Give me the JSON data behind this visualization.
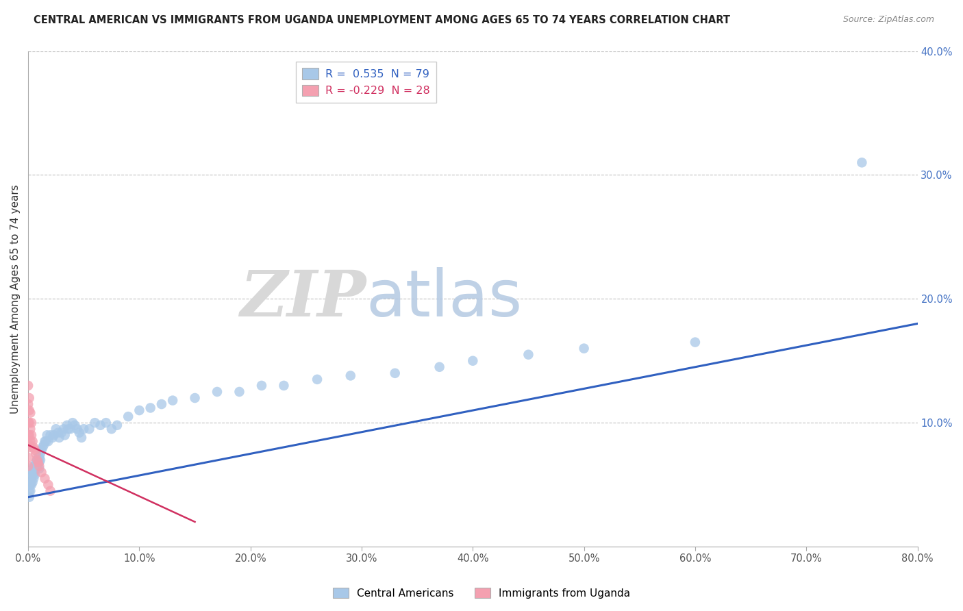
{
  "title": "CENTRAL AMERICAN VS IMMIGRANTS FROM UGANDA UNEMPLOYMENT AMONG AGES 65 TO 74 YEARS CORRELATION CHART",
  "source": "Source: ZipAtlas.com",
  "ylabel": "Unemployment Among Ages 65 to 74 years",
  "xlim": [
    0.0,
    0.8
  ],
  "ylim": [
    0.0,
    0.4
  ],
  "xticks": [
    0.0,
    0.1,
    0.2,
    0.3,
    0.4,
    0.5,
    0.6,
    0.7,
    0.8
  ],
  "yticks": [
    0.0,
    0.1,
    0.2,
    0.3,
    0.4
  ],
  "ytick_labels_right": [
    "",
    "10.0%",
    "20.0%",
    "30.0%",
    "40.0%"
  ],
  "xtick_labels": [
    "0.0%",
    "10.0%",
    "20.0%",
    "30.0%",
    "40.0%",
    "50.0%",
    "60.0%",
    "70.0%",
    "80.0%"
  ],
  "blue_R": 0.535,
  "blue_N": 79,
  "pink_R": -0.229,
  "pink_N": 28,
  "blue_color": "#a8c8e8",
  "pink_color": "#f4a0b0",
  "blue_line_color": "#3060c0",
  "pink_line_color": "#d03060",
  "watermark_zip": "ZIP",
  "watermark_atlas": "atlas",
  "legend_blue_label": "R =  0.535  N = 79",
  "legend_pink_label": "R = -0.229  N = 28",
  "bottom_legend_blue": "Central Americans",
  "bottom_legend_pink": "Immigrants from Uganda",
  "blue_scatter_x": [
    0.001,
    0.001,
    0.001,
    0.002,
    0.002,
    0.002,
    0.003,
    0.003,
    0.003,
    0.004,
    0.004,
    0.004,
    0.005,
    0.005,
    0.005,
    0.006,
    0.006,
    0.006,
    0.007,
    0.007,
    0.008,
    0.008,
    0.009,
    0.009,
    0.01,
    0.01,
    0.01,
    0.011,
    0.011,
    0.012,
    0.013,
    0.014,
    0.015,
    0.016,
    0.017,
    0.018,
    0.02,
    0.022,
    0.023,
    0.025,
    0.027,
    0.028,
    0.03,
    0.032,
    0.033,
    0.035,
    0.036,
    0.038,
    0.04,
    0.042,
    0.044,
    0.046,
    0.048,
    0.05,
    0.055,
    0.06,
    0.065,
    0.07,
    0.075,
    0.08,
    0.09,
    0.1,
    0.11,
    0.12,
    0.13,
    0.15,
    0.17,
    0.19,
    0.21,
    0.23,
    0.26,
    0.29,
    0.33,
    0.37,
    0.4,
    0.45,
    0.5,
    0.6,
    0.75
  ],
  "blue_scatter_y": [
    0.05,
    0.045,
    0.04,
    0.055,
    0.05,
    0.045,
    0.06,
    0.055,
    0.05,
    0.062,
    0.058,
    0.052,
    0.065,
    0.06,
    0.055,
    0.065,
    0.062,
    0.058,
    0.068,
    0.063,
    0.07,
    0.065,
    0.072,
    0.067,
    0.072,
    0.068,
    0.063,
    0.075,
    0.07,
    0.078,
    0.08,
    0.082,
    0.085,
    0.085,
    0.09,
    0.085,
    0.09,
    0.088,
    0.09,
    0.095,
    0.092,
    0.088,
    0.092,
    0.095,
    0.09,
    0.098,
    0.095,
    0.095,
    0.1,
    0.098,
    0.095,
    0.092,
    0.088,
    0.095,
    0.095,
    0.1,
    0.098,
    0.1,
    0.095,
    0.098,
    0.105,
    0.11,
    0.112,
    0.115,
    0.118,
    0.12,
    0.125,
    0.125,
    0.13,
    0.13,
    0.135,
    0.138,
    0.14,
    0.145,
    0.15,
    0.155,
    0.16,
    0.165,
    0.31
  ],
  "pink_scatter_x": [
    0.0,
    0.0,
    0.0,
    0.0,
    0.0,
    0.0,
    0.0,
    0.001,
    0.001,
    0.001,
    0.001,
    0.001,
    0.002,
    0.002,
    0.002,
    0.003,
    0.003,
    0.004,
    0.005,
    0.006,
    0.007,
    0.008,
    0.009,
    0.01,
    0.012,
    0.015,
    0.018,
    0.02
  ],
  "pink_scatter_y": [
    0.13,
    0.115,
    0.1,
    0.09,
    0.08,
    0.072,
    0.065,
    0.12,
    0.11,
    0.1,
    0.09,
    0.082,
    0.108,
    0.095,
    0.085,
    0.1,
    0.09,
    0.085,
    0.08,
    0.078,
    0.075,
    0.07,
    0.068,
    0.065,
    0.06,
    0.055,
    0.05,
    0.045
  ],
  "blue_line_x0": 0.0,
  "blue_line_y0": 0.04,
  "blue_line_x1": 0.8,
  "blue_line_y1": 0.18,
  "pink_line_x0": 0.0,
  "pink_line_y0": 0.082,
  "pink_line_x1": 0.15,
  "pink_line_y1": 0.02
}
